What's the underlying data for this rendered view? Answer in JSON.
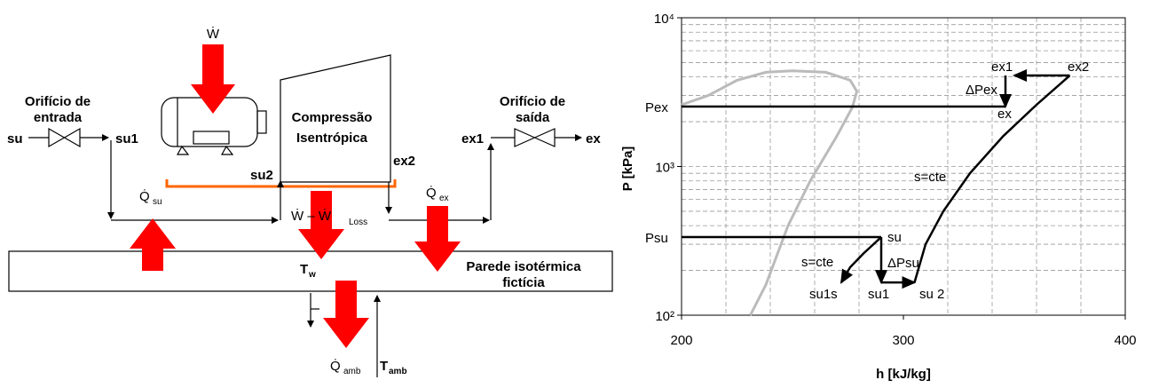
{
  "diagram": {
    "work_in": "Ẇ",
    "inlet_orifice": [
      "Orifício de",
      "entrada"
    ],
    "su": "su",
    "su1": "su1",
    "su2": "su2",
    "compression": [
      "Compressão",
      "Isentrópica"
    ],
    "ex2": "ex2",
    "ex1": "ex1",
    "ex": "ex",
    "outlet_orifice": [
      "Orifício de",
      "saída"
    ],
    "q_su": {
      "main": "Q̇",
      "sub": "su"
    },
    "w_loss": {
      "main": "Ẇ – Ẇ",
      "sub": "Loss"
    },
    "q_ex": {
      "main": "Q̇",
      "sub": "ex"
    },
    "t_w": {
      "main": "T",
      "sub": "w"
    },
    "wall": [
      "Parede isotérmica",
      "fictícia"
    ],
    "q_amb": {
      "main": "Q̇",
      "sub": "amb"
    },
    "t_amb": {
      "main": "T",
      "sub": "amb"
    }
  },
  "chart_data": {
    "type": "line",
    "xlabel": "h [kJ/kg]",
    "ylabel": "P [kPa]",
    "xlim": [
      200,
      400
    ],
    "xticks": [
      200,
      300,
      400
    ],
    "ylim": [
      100,
      10000
    ],
    "ylog": true,
    "yticks": [
      {
        "value": 100,
        "label": "10²"
      },
      {
        "value": 1000,
        "label": "10³"
      },
      {
        "value": 10000,
        "label": "10⁴"
      }
    ],
    "grid": true,
    "xminor": [
      220,
      240,
      260,
      280,
      320,
      340,
      360,
      380
    ],
    "yminor": [
      200,
      300,
      400,
      500,
      600,
      700,
      800,
      900,
      2000,
      3000,
      4000,
      5000,
      6000,
      7000,
      8000,
      9000
    ],
    "series": [
      {
        "color": "#bbbbbb",
        "x": [
          231,
          238,
          248,
          258,
          270,
          277,
          279,
          276,
          265,
          250,
          238,
          225,
          212,
          200
        ],
        "values": [
          100,
          160,
          400,
          800,
          1600,
          2500,
          3200,
          3800,
          4300,
          4400,
          4300,
          3800,
          3000,
          2600
        ]
      },
      {
        "color": "#000000",
        "x": [
          200,
          346
        ],
        "values": [
          2530,
          2530
        ]
      },
      {
        "color": "#000000",
        "x": [
          200,
          290
        ],
        "values": [
          335,
          335
        ]
      },
      {
        "color": "#000000",
        "x": [
          290,
          290
        ],
        "values": [
          335,
          166
        ],
        "arrow": true
      },
      {
        "color": "#000000",
        "x": [
          290,
          282,
          276,
          272
        ],
        "values": [
          335,
          260,
          210,
          166
        ],
        "arrow": true
      },
      {
        "color": "#000000",
        "x": [
          290,
          305
        ],
        "values": [
          166,
          166
        ],
        "arrow": true
      },
      {
        "color": "#000000",
        "x": [
          305,
          310,
          318,
          330,
          345,
          360,
          375
        ],
        "values": [
          166,
          300,
          500,
          900,
          1600,
          2600,
          4090
        ]
      },
      {
        "color": "#000000",
        "x": [
          375,
          350
        ],
        "values": [
          4090,
          4090
        ],
        "arrow": true
      },
      {
        "color": "#000000",
        "x": [
          346,
          346
        ],
        "values": [
          4090,
          2530
        ],
        "arrow": true
      }
    ],
    "annotations": [
      "Pex",
      "Psu",
      "ex1",
      "ex2",
      "ΔPex",
      "ex",
      "s=cte",
      "su",
      "s=cte",
      "ΔPsu",
      "su1s",
      "su1",
      "su 2"
    ]
  }
}
